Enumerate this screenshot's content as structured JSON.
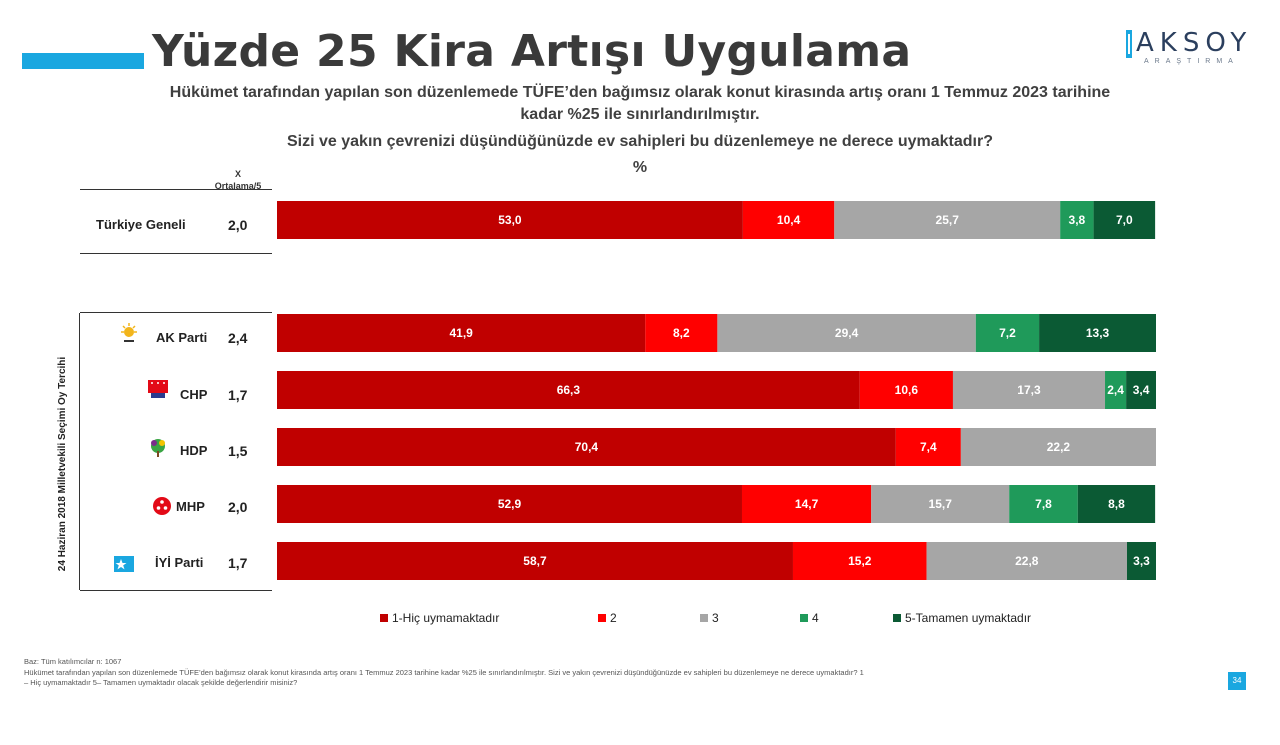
{
  "header": {
    "title": "Yüzde 25 Kira Artışı Uygulama",
    "subtitle_line1": "Hükümet tarafından yapılan son düzenlemede TÜFE’den bağımsız olarak konut kirasında artış oranı 1 Temmuz 2023 tarihine",
    "subtitle_line2": "kadar %25 ile sınırlandırılmıştır.",
    "question": "Sizi ve yakın çevrenizi düşündüğünüzde ev sahipleri bu düzenlemeye ne derece uymaktadır?",
    "unit": "%",
    "accent_color": "#1aa7e0"
  },
  "logo": {
    "name": "AKSOY",
    "tagline": "ARAŞTIRMA"
  },
  "columns": {
    "mean_header_x": "X",
    "mean_header_label": "Ortalama/5"
  },
  "group_label": "24 Haziran 2018 Milletvekili Seçimi Oy Tercihi",
  "chart_data": {
    "type": "bar",
    "orientation": "horizontal",
    "stacked": true,
    "percent_scale": [
      0,
      100
    ],
    "categories": [
      "Türkiye Geneli",
      "AK Parti",
      "CHP",
      "HDP",
      "MHP",
      "İYİ Parti"
    ],
    "means": [
      "2,0",
      "2,4",
      "1,7",
      "1,5",
      "2,0",
      "1,7"
    ],
    "series": [
      {
        "name": "1-Hiç uymamaktadır",
        "color": "#c00000",
        "values": [
          53.0,
          41.9,
          66.3,
          70.4,
          52.9,
          58.7
        ],
        "labels": [
          "53,0",
          "41,9",
          "66,3",
          "70,4",
          "52,9",
          "58,7"
        ]
      },
      {
        "name": "2",
        "color": "#ff0000",
        "values": [
          10.4,
          8.2,
          10.6,
          7.4,
          14.7,
          15.2
        ],
        "labels": [
          "10,4",
          "8,2",
          "10,6",
          "7,4",
          "14,7",
          "15,2"
        ]
      },
      {
        "name": "3",
        "color": "#a6a6a6",
        "values": [
          25.7,
          29.4,
          17.3,
          22.2,
          15.7,
          22.8
        ],
        "labels": [
          "25,7",
          "29,4",
          "17,3",
          "22,2",
          "15,7",
          "22,8"
        ]
      },
      {
        "name": "4",
        "color": "#1f9a5a",
        "values": [
          3.8,
          7.2,
          2.4,
          0,
          7.8,
          0
        ],
        "labels": [
          "3,8",
          "7,2",
          "2,4",
          "",
          "7,8",
          ""
        ]
      },
      {
        "name": "5-Tamamen uymaktadır",
        "color": "#0b5a34",
        "values": [
          7.0,
          13.3,
          3.4,
          0,
          8.8,
          3.3
        ],
        "labels": [
          "7,0",
          "13,3",
          "3,4",
          "",
          "8,8",
          "3,3"
        ]
      }
    ],
    "legend_position": "bottom"
  },
  "footer": {
    "base": "Baz: Tüm katılımcılar n: 1067",
    "note_line1": "Hükümet tarafından yapılan son düzenlemede TÜFE’den bağımsız olarak konut kirasında artış oranı 1 Temmuz 2023 tarihine kadar %25 ile sınırlandırılmıştır. Sizi ve yakın çevrenizi düşündüğünüzde ev sahipleri bu düzenlemeye ne derece uymaktadır? 1",
    "note_line2": "– Hiç uymamaktadır 5– Tamamen uymaktadır olacak şekilde değerlendirir misiniz?",
    "page_number": "34"
  }
}
